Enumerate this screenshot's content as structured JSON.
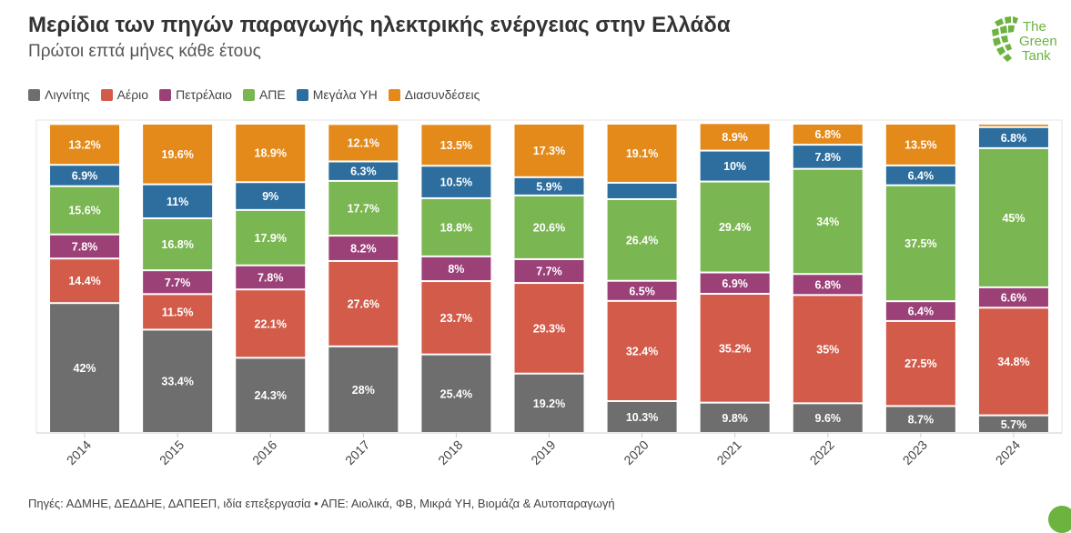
{
  "title": "Μερίδια των πηγών παραγωγής ηλεκτρικής ενέργειας στην Ελλάδα",
  "subtitle": "Πρώτοι επτά μήνες κάθε έτους",
  "logo": {
    "line1": "The",
    "line2": "Green",
    "line3": "Tank",
    "color": "#6cb33f"
  },
  "source": "Πηγές: ΑΔΜΗΕ, ΔΕΔΔΗΕ, ΔΑΠΕΕΠ, ιδία επεξεργασία • ΑΠΕ: Αιολικά, ΦΒ, Μικρά ΥΗ, Βιομάζα & Αυτοπαραγωγή",
  "chart_data": {
    "type": "bar",
    "stacked": true,
    "categories": [
      "2014",
      "2015",
      "2016",
      "2017",
      "2018",
      "2019",
      "2020",
      "2021",
      "2022",
      "2023",
      "2024"
    ],
    "ylim": [
      0,
      100
    ],
    "legend_position": "top-left",
    "series": [
      {
        "name": "Λιγνίτης",
        "color": "#6e6e6e",
        "values": [
          42,
          33.4,
          24.3,
          28,
          25.4,
          19.2,
          10.3,
          9.8,
          9.6,
          8.7,
          5.7
        ],
        "labels": [
          "42%",
          "33.4%",
          "24.3%",
          "28%",
          "25.4%",
          "19.2%",
          "10.3%",
          "9.8%",
          "9.6%",
          "8.7%",
          "5.7%"
        ]
      },
      {
        "name": "Αέριο",
        "color": "#d35b4a",
        "values": [
          14.4,
          11.5,
          22.1,
          27.6,
          23.7,
          29.3,
          32.4,
          35.2,
          35,
          27.5,
          34.8
        ],
        "labels": [
          "14.4%",
          "11.5%",
          "22.1%",
          "27.6%",
          "23.7%",
          "29.3%",
          "32.4%",
          "35.2%",
          "35%",
          "27.5%",
          "34.8%"
        ]
      },
      {
        "name": "Πετρέλαιο",
        "color": "#9c4178",
        "values": [
          7.8,
          7.7,
          7.8,
          8.2,
          8,
          7.7,
          6.5,
          6.9,
          6.8,
          6.4,
          6.6
        ],
        "labels": [
          "7.8%",
          "7.7%",
          "7.8%",
          "8.2%",
          "8%",
          "7.7%",
          "6.5%",
          "6.9%",
          "6.8%",
          "6.4%",
          "6.6%"
        ]
      },
      {
        "name": "ΑΠΕ",
        "color": "#7ab651",
        "values": [
          15.6,
          16.8,
          17.9,
          17.7,
          18.8,
          20.6,
          26.4,
          29.4,
          34,
          37.5,
          45
        ],
        "labels": [
          "15.6%",
          "16.8%",
          "17.9%",
          "17.7%",
          "18.8%",
          "20.6%",
          "26.4%",
          "29.4%",
          "34%",
          "37.5%",
          "45%"
        ]
      },
      {
        "name": "Μεγάλα ΥΗ",
        "color": "#2d6e9e",
        "values": [
          6.9,
          11,
          9,
          6.3,
          10.5,
          5.9,
          5.3,
          10,
          7.8,
          6.4,
          6.8
        ],
        "labels": [
          "6.9%",
          "11%",
          "9%",
          "6.3%",
          "10.5%",
          "5.9%",
          "",
          "10%",
          "7.8%",
          "6.4%",
          "6.8%"
        ]
      },
      {
        "name": "Διασυνδέσεις",
        "color": "#e48a1b",
        "values": [
          13.2,
          19.6,
          18.9,
          12.1,
          13.5,
          17.3,
          19.1,
          8.9,
          6.8,
          13.5,
          1.1
        ],
        "labels": [
          "13.2%",
          "19.6%",
          "18.9%",
          "12.1%",
          "13.5%",
          "17.3%",
          "19.1%",
          "8.9%",
          "6.8%",
          "13.5%",
          ""
        ]
      }
    ]
  }
}
